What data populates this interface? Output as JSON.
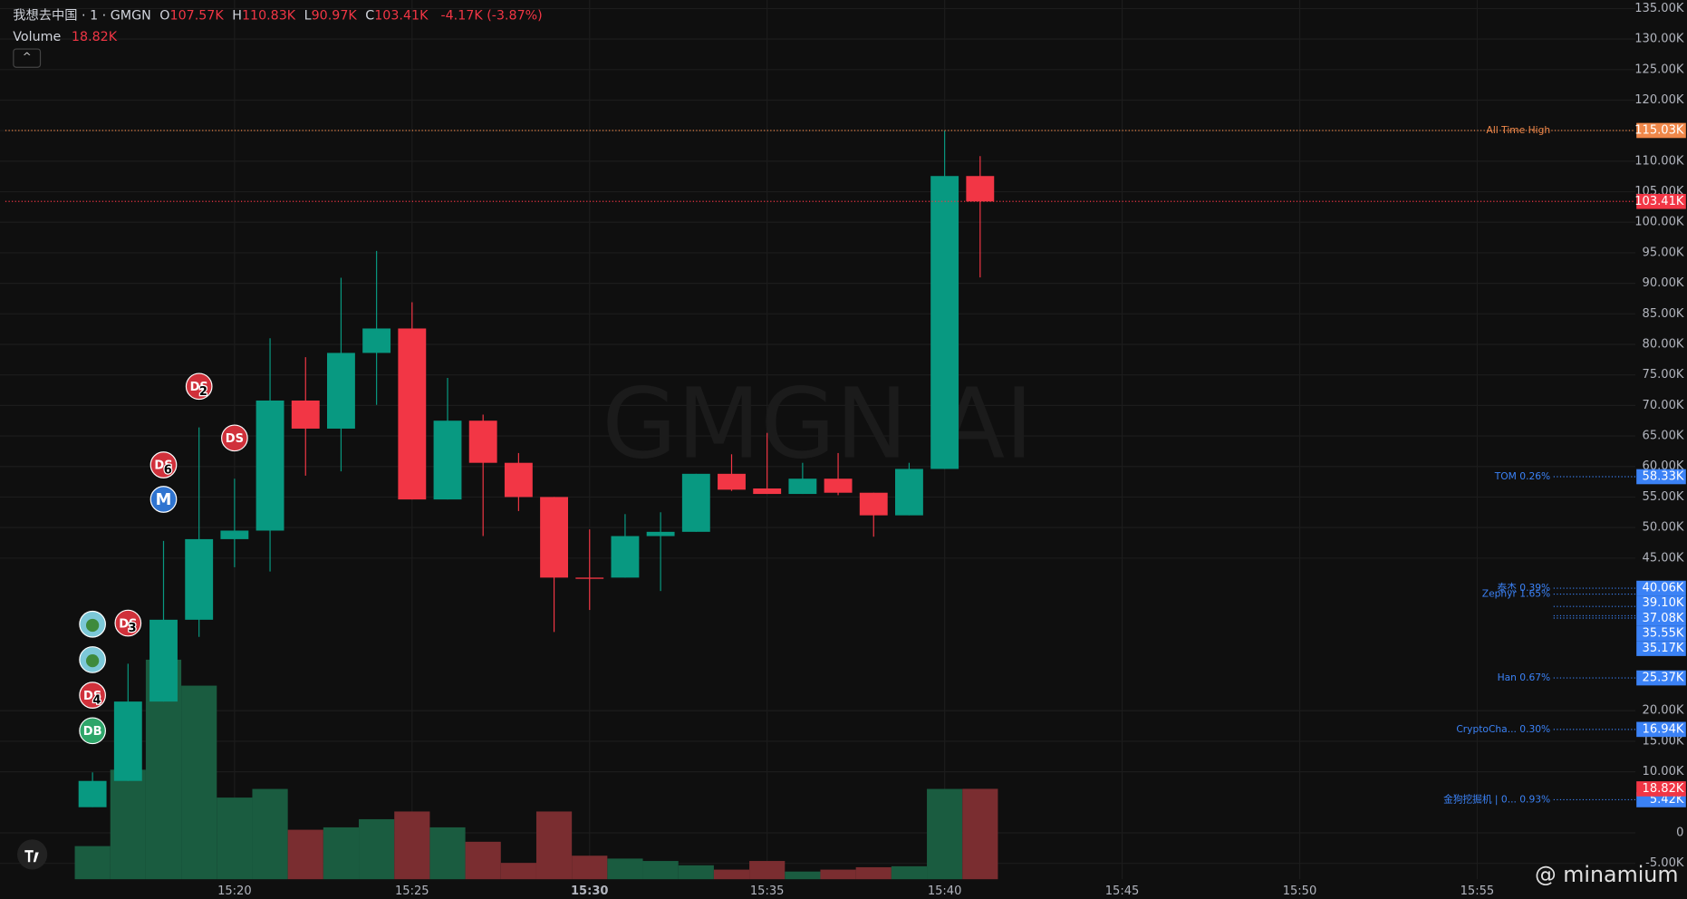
{
  "header": {
    "symbol": "我想去中国 · 1 · GMGN",
    "ohlc": [
      {
        "key": "O",
        "value": "107.57K"
      },
      {
        "key": "H",
        "value": "110.83K"
      },
      {
        "key": "L",
        "value": "90.97K"
      },
      {
        "key": "C",
        "value": "103.41K"
      }
    ],
    "change": "-4.17K (-3.87%)",
    "volume_label": "Volume",
    "volume_value": "18.82K"
  },
  "watermark": "GMGN AI",
  "credit": "@ minamium",
  "markers": [
    {
      "text": "DS",
      "badge": "2"
    },
    {
      "text": "DS"
    },
    {
      "text": "DS",
      "badge": "6"
    },
    {
      "text": "M"
    },
    {
      "text": "DS",
      "badge": "3"
    },
    {
      "text": "DS",
      "badge": "4"
    },
    {
      "text": "DB"
    }
  ],
  "chart_data": {
    "type": "candlestick",
    "x": [
      "15:16",
      "15:17",
      "15:18",
      "15:19",
      "15:20",
      "15:21",
      "15:22",
      "15:23",
      "15:24",
      "15:25",
      "15:26",
      "15:27",
      "15:28",
      "15:29",
      "15:30",
      "15:31",
      "15:32",
      "15:33",
      "15:34",
      "15:35",
      "15:36",
      "15:37",
      "15:38",
      "15:39",
      "15:40",
      "15:41"
    ],
    "open": [
      4.2,
      8.5,
      21.5,
      34.9,
      48.1,
      49.5,
      70.8,
      66.2,
      78.6,
      82.6,
      54.6,
      67.5,
      60.6,
      55,
      41.8,
      41.8,
      48.6,
      49.3,
      58.8,
      56.4,
      55.5,
      58,
      55.7,
      52,
      59.6,
      107.57
    ],
    "high": [
      9.9,
      27.7,
      47.8,
      66.4,
      58,
      81,
      77.9,
      90.9,
      95.3,
      86.9,
      74.5,
      68.5,
      62.2,
      55,
      49.7,
      52.2,
      52.5,
      58.8,
      62,
      65.5,
      60.6,
      62.2,
      55.7,
      60.6,
      115.03,
      110.83
    ],
    "low": [
      4.2,
      8.5,
      21.5,
      32.1,
      43.5,
      42.8,
      58.5,
      59.2,
      70.1,
      54.6,
      54.6,
      48.6,
      52.7,
      32.9,
      36.5,
      41.8,
      39.6,
      49.3,
      56,
      55.5,
      55.5,
      55.3,
      48.5,
      52,
      59.6,
      90.97
    ],
    "close": [
      8.5,
      21.5,
      34.9,
      48.1,
      49.5,
      70.8,
      66.2,
      78.6,
      82.6,
      54.6,
      67.5,
      60.6,
      55,
      41.8,
      41.6,
      48.6,
      49.3,
      58.8,
      56.2,
      55.5,
      58,
      55.7,
      52,
      59.6,
      107.57,
      103.41
    ],
    "volume": [
      6.9,
      22.8,
      45.7,
      40.3,
      17,
      18.8,
      10.3,
      10.8,
      12.5,
      14.1,
      10.8,
      7.8,
      3.4,
      14.1,
      4.9,
      4.3,
      3.8,
      2.9,
      2,
      3.8,
      1.6,
      2,
      2.5,
      2.7,
      18.8,
      18.82
    ],
    "up_color": "#089981",
    "down_color": "#f23645",
    "volume_up_color": "#1a5c40",
    "volume_down_color": "#7a2d30",
    "ylim": [
      -7.6,
      136.4
    ],
    "yticks": [
      {
        "value": 135,
        "label": "135.00K"
      },
      {
        "value": 130,
        "label": "130.00K"
      },
      {
        "value": 125,
        "label": "125.00K"
      },
      {
        "value": 120,
        "label": "120.00K"
      },
      {
        "value": 115,
        "label": "115.00K"
      },
      {
        "value": 110,
        "label": "110.00K"
      },
      {
        "value": 105,
        "label": "105.00K"
      },
      {
        "value": 100,
        "label": "100.00K"
      },
      {
        "value": 95,
        "label": "95.00K"
      },
      {
        "value": 90,
        "label": "90.00K"
      },
      {
        "value": 85,
        "label": "85.00K"
      },
      {
        "value": 80,
        "label": "80.00K"
      },
      {
        "value": 75,
        "label": "75.00K"
      },
      {
        "value": 70,
        "label": "70.00K"
      },
      {
        "value": 65,
        "label": "65.00K"
      },
      {
        "value": 60,
        "label": "60.00K"
      },
      {
        "value": 55,
        "label": "55.00K"
      },
      {
        "value": 50,
        "label": "50.00K"
      },
      {
        "value": 45,
        "label": "45.00K"
      },
      {
        "value": 20,
        "label": "20.00K"
      },
      {
        "value": 15,
        "label": "15.00K"
      },
      {
        "value": 10,
        "label": "10.00K"
      },
      0,
      {
        "value": -5,
        "label": "-5.00K"
      }
    ],
    "xlim": [
      "15:14",
      "15:59"
    ],
    "xticks": [
      "15:20",
      "15:25",
      "15:30",
      "15:35",
      "15:40",
      "15:45",
      "15:50",
      "15:55"
    ],
    "grid": true,
    "ath": {
      "label": "All Time High",
      "price": {
        "value": 115.03,
        "label": "115.03K"
      },
      "color": "#f0884a"
    },
    "last_price": {
      "value": 103.41,
      "label": "103.41K"
    },
    "holder_color": "#3b82f6",
    "holders": [
      {
        "label": "TOM 0.26%",
        "price": {
          "value": 58.33,
          "label": "58.33K"
        }
      },
      {
        "label": "泰杰 0.39%",
        "price": {
          "value": 40.06,
          "label": "40.06K"
        }
      },
      {
        "label": "Zephyr 1.65%",
        "price": {
          "value": 39.1,
          "label": "39.10K"
        }
      },
      {
        "price": {
          "value": 37.08,
          "label": "37.08K"
        }
      },
      {
        "price": {
          "value": 35.55,
          "label": "35.55K"
        }
      },
      {
        "price": {
          "value": 35.17,
          "label": "35.17K"
        }
      },
      {
        "label": "Han 0.67%",
        "price": {
          "value": 25.37,
          "label": "25.37K"
        }
      },
      {
        "label": "CryptoCha... 0.30%",
        "price": {
          "value": 16.94,
          "label": "16.94K"
        }
      },
      {
        "label": "金狗挖掘机 | 0... 0.93%",
        "price": {
          "value": 5.42,
          "label": "5.42K"
        }
      }
    ]
  }
}
